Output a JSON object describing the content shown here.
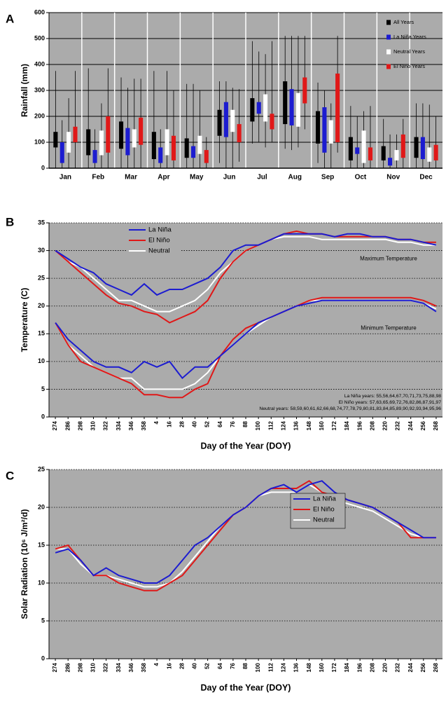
{
  "chart_data": [
    {
      "type": "floating-bar",
      "label": "A",
      "y_label": "Rainfall (mm)",
      "categories": [
        "Jan",
        "Feb",
        "Mar",
        "Apr",
        "May",
        "Jun",
        "Jul",
        "Aug",
        "Sep",
        "Oct",
        "Nov",
        "Dec"
      ],
      "ylim": [
        0,
        600
      ],
      "yticks": [
        0,
        100,
        200,
        300,
        400,
        500,
        600
      ],
      "grid": true,
      "series": [
        {
          "name": "All Years",
          "color": "#000000",
          "low": [
            80,
            50,
            75,
            35,
            40,
            125,
            180,
            170,
            95,
            30,
            30,
            40
          ],
          "high": [
            140,
            150,
            180,
            140,
            115,
            225,
            270,
            335,
            220,
            120,
            85,
            120
          ],
          "min": [
            0,
            0,
            0,
            0,
            0,
            20,
            95,
            75,
            20,
            0,
            0,
            0
          ],
          "max": [
            375,
            385,
            350,
            375,
            325,
            335,
            490,
            510,
            330,
            240,
            190,
            250
          ]
        },
        {
          "name": "La Niña Years",
          "color": "#1c1cd0",
          "low": [
            20,
            20,
            50,
            20,
            40,
            120,
            210,
            165,
            60,
            55,
            10,
            35
          ],
          "high": [
            100,
            70,
            155,
            80,
            85,
            255,
            255,
            305,
            235,
            80,
            40,
            120
          ],
          "min": [
            0,
            0,
            0,
            0,
            0,
            0,
            100,
            70,
            0,
            0,
            0,
            0
          ],
          "max": [
            185,
            150,
            310,
            150,
            325,
            335,
            450,
            510,
            300,
            200,
            130,
            250
          ]
        },
        {
          "name": "Neutral Years",
          "color": "#ffffff",
          "low": [
            60,
            50,
            80,
            50,
            55,
            140,
            180,
            160,
            95,
            20,
            30,
            25
          ],
          "high": [
            140,
            145,
            150,
            150,
            125,
            225,
            285,
            290,
            185,
            145,
            70,
            80
          ],
          "min": [
            0,
            0,
            0,
            0,
            0,
            0,
            80,
            80,
            0,
            0,
            0,
            0
          ],
          "max": [
            270,
            250,
            345,
            375,
            300,
            310,
            440,
            510,
            250,
            220,
            130,
            245
          ]
        },
        {
          "name": "El Niño Years",
          "color": "#e01818",
          "low": [
            100,
            60,
            90,
            30,
            20,
            100,
            150,
            250,
            100,
            30,
            40,
            30
          ],
          "high": [
            160,
            200,
            195,
            125,
            70,
            170,
            210,
            350,
            365,
            80,
            130,
            90
          ],
          "min": [
            0,
            0,
            0,
            0,
            0,
            25,
            100,
            150,
            60,
            0,
            0,
            0
          ],
          "max": [
            375,
            385,
            345,
            300,
            120,
            305,
            490,
            510,
            510,
            240,
            190,
            200
          ]
        }
      ]
    },
    {
      "type": "line",
      "label": "B",
      "y_label": "Temperature (C)",
      "x_label": "Day of the Year (DOY)",
      "categories": [
        274,
        286,
        298,
        310,
        322,
        334,
        346,
        358,
        4,
        16,
        28,
        40,
        52,
        64,
        76,
        88,
        100,
        112,
        124,
        136,
        148,
        160,
        172,
        184,
        196,
        208,
        220,
        232,
        244,
        256,
        268
      ],
      "ylim": [
        0,
        35
      ],
      "yticks": [
        0,
        5,
        10,
        15,
        20,
        25,
        30,
        35
      ],
      "grid": true,
      "annotations": [
        "Maximum Temperature",
        "Minimum Temperature"
      ],
      "notes": [
        "La Niña years: 55,56,64,67,70,71,73,75,88,98",
        "El Niño years: 57,63,65,69,72,76,82,86,87,91,97",
        "Neutral years: 58,59,60,61,62,66,68,74,77,78,79,80,81,83,84,85,89,90,92,93,94,95,96"
      ],
      "series": [
        {
          "name": "La Niña",
          "color": "#1c1cd0",
          "max_values": [
            30,
            28.5,
            27,
            26,
            24,
            23,
            22,
            24,
            22,
            23,
            23,
            24,
            25,
            27,
            30,
            31,
            31,
            32,
            33,
            33,
            33,
            33,
            32.5,
            33,
            33,
            32.5,
            32.5,
            32,
            32,
            31.5,
            31
          ],
          "min_values": [
            17,
            14,
            12,
            10,
            9,
            9,
            8,
            10,
            9,
            10,
            7,
            9,
            9,
            11,
            13,
            15,
            17,
            18,
            19,
            20,
            20.5,
            21,
            21,
            21,
            21,
            21,
            21,
            21,
            21,
            20.5,
            19
          ]
        },
        {
          "name": "El Niño",
          "color": "#e01818",
          "max_values": [
            30,
            28,
            26,
            24,
            22,
            20.5,
            20,
            19,
            18.5,
            17,
            18,
            19,
            21,
            25,
            28,
            30,
            31,
            32,
            33,
            33.5,
            33,
            33,
            32.5,
            32.5,
            32.5,
            32.5,
            32.5,
            32,
            32,
            31.5,
            31.5
          ],
          "min_values": [
            17,
            13,
            10,
            9,
            8,
            7,
            6,
            4,
            4,
            3.5,
            3.5,
            5,
            6,
            11,
            14,
            16,
            17,
            18,
            19,
            20,
            21,
            21.5,
            21.5,
            21.5,
            21.5,
            21.5,
            21.5,
            21.5,
            21.5,
            21,
            20
          ]
        },
        {
          "name": "Neutral",
          "color": "#ffffff",
          "max_values": [
            30,
            28,
            27,
            25,
            23,
            21,
            21,
            20,
            19,
            19,
            20,
            21,
            23,
            26,
            28,
            30,
            31,
            32,
            32.5,
            32.5,
            32.5,
            32,
            32,
            32,
            32,
            32,
            32,
            31.5,
            31.5,
            31,
            31
          ],
          "min_values": [
            17,
            13,
            11,
            9,
            8,
            7,
            7,
            5,
            5,
            5,
            5,
            6,
            8,
            11,
            13,
            15,
            16.5,
            18,
            19,
            20,
            21,
            21,
            21,
            21,
            21,
            21,
            21,
            21,
            21,
            20.5,
            19.5
          ]
        }
      ]
    },
    {
      "type": "line",
      "label": "C",
      "y_label": "Solar Radiation (10⁶ J/m²/d)",
      "x_label": "Day of the Year (DOY)",
      "categories": [
        274,
        286,
        298,
        310,
        322,
        334,
        346,
        358,
        4,
        16,
        28,
        40,
        52,
        64,
        76,
        88,
        100,
        112,
        124,
        136,
        148,
        160,
        172,
        184,
        196,
        208,
        220,
        232,
        244,
        256,
        268
      ],
      "ylim": [
        0,
        25
      ],
      "yticks": [
        0,
        5,
        10,
        15,
        20,
        25
      ],
      "grid": true,
      "series": [
        {
          "name": "La Niña",
          "color": "#1c1cd0",
          "values": [
            14,
            14.5,
            13,
            11,
            12,
            11,
            10.5,
            10,
            10,
            11,
            13,
            15,
            16,
            17.5,
            19,
            20,
            21.5,
            22.5,
            23,
            22,
            23,
            23.5,
            22,
            21,
            20.5,
            20,
            19,
            18,
            17,
            16,
            16
          ]
        },
        {
          "name": "El Niño",
          "color": "#e01818",
          "values": [
            14.5,
            15,
            13,
            11,
            11,
            10,
            9.5,
            9,
            9,
            10,
            11,
            13,
            15,
            17,
            19,
            20,
            21.5,
            22.5,
            22.5,
            22.5,
            23.5,
            22,
            21.5,
            21,
            20.5,
            20,
            19,
            18,
            16,
            16,
            16
          ]
        },
        {
          "name": "Neutral",
          "color": "#ffffff",
          "values": [
            14.5,
            14.5,
            12.5,
            11,
            11,
            10.5,
            10,
            9.5,
            9.5,
            10,
            11.5,
            13.5,
            15.5,
            17.5,
            19,
            20,
            21.5,
            22,
            22,
            22,
            23,
            22,
            21,
            20.5,
            20,
            19.5,
            18.5,
            17.5,
            16.5,
            16,
            16
          ]
        }
      ]
    }
  ]
}
